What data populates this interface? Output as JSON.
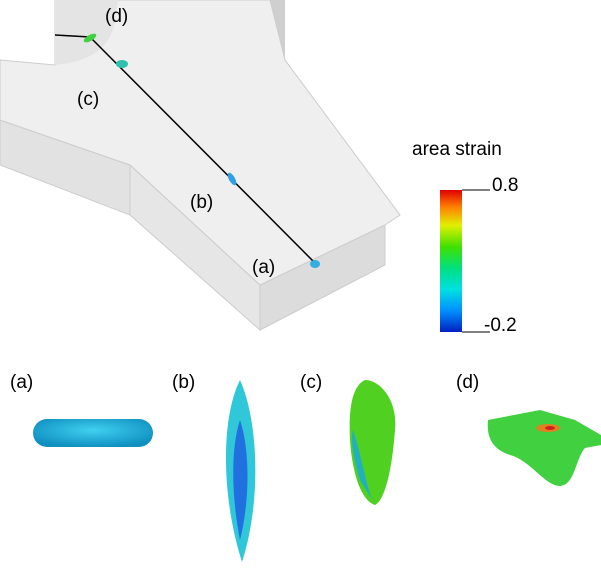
{
  "channel": {
    "labels": [
      "(d)",
      "(c)",
      "(b)",
      "(a)"
    ]
  },
  "colorbar": {
    "title": "area strain",
    "max": 0.8,
    "min": -0.2
  },
  "cells": {
    "labels": [
      "(a)",
      "(b)",
      "(c)",
      "(d)"
    ]
  }
}
